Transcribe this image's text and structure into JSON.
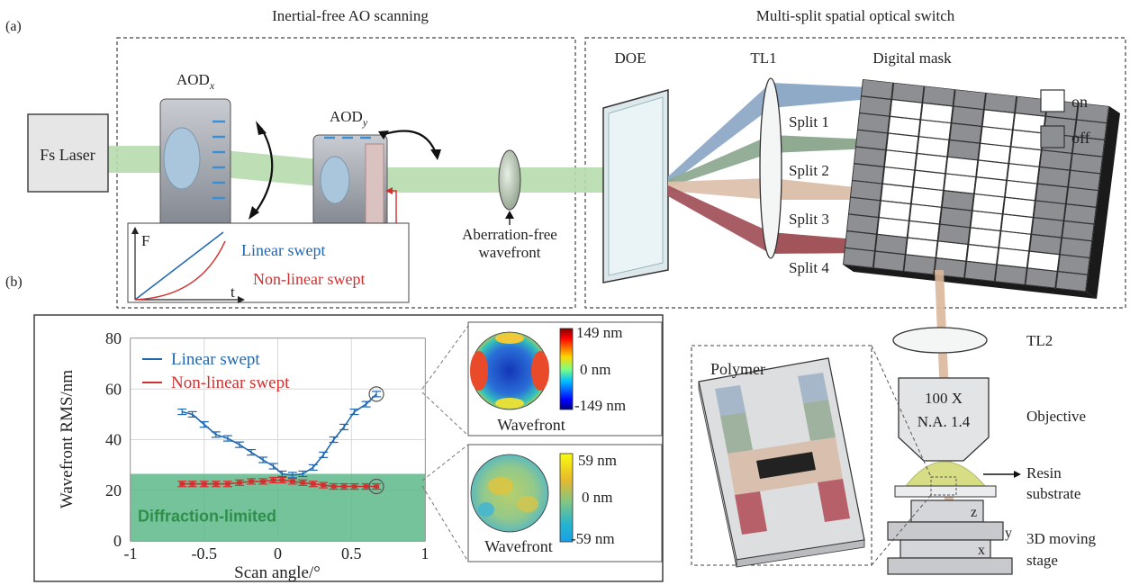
{
  "panel_labels": {
    "a": "(a)",
    "b": "(b)"
  },
  "section_titles": {
    "scanning": "Inertial-free AO scanning",
    "switch": "Multi-split spatial optical switch"
  },
  "components": {
    "laser": "Fs Laser",
    "aod_x": "AOD",
    "aod_x_sub": "x",
    "aod_y": "AOD",
    "aod_y_sub": "y",
    "aberration": "Aberration-free",
    "wavefront": "wavefront",
    "doe": "DOE",
    "tl1": "TL1",
    "mask": "Digital mask",
    "tl2": "TL2",
    "objective_label": "Objective",
    "objective_mag": "100 X",
    "objective_na": "N.A. 1.4",
    "resin": "Resin",
    "substrate": "substrate",
    "stage_line1": "3D moving",
    "stage_line2": "stage",
    "axis_z": "z",
    "axis_y": "y",
    "axis_x": "x",
    "polymer": "Polymer"
  },
  "splits": [
    "Split 1",
    "Split 2",
    "Split 3",
    "Split 4"
  ],
  "mask_legend": {
    "on": "on",
    "off": "off"
  },
  "sweep_inset": {
    "y_label": "F",
    "x_label": "t",
    "linear": "Linear swept",
    "nonlinear": "Non-linear swept"
  },
  "wavefront_maps": [
    {
      "caption": "Wavefront",
      "max": "149 nm",
      "mid": "0 nm",
      "min": "-149 nm"
    },
    {
      "caption": "Wavefront",
      "max": "59 nm",
      "mid": "0 nm",
      "min": "-59 nm"
    }
  ],
  "colors": {
    "beam": "#b7dcae",
    "linear": "#1f67b1",
    "nonlinear": "#d32f2f",
    "diffraction_zone": "#5cb98a",
    "split1": "#8eaac6",
    "split2": "#8faa91",
    "split3": "#dcc1ad",
    "split4": "#a2545b"
  },
  "chart_data": {
    "type": "line",
    "xlabel": "Scan angle/°",
    "ylabel": "Wavefront RMS/nm",
    "xlim": [
      -1,
      1
    ],
    "ylim": [
      0,
      80
    ],
    "x_ticks": [
      "-1",
      "-0.5",
      "0",
      "0.5",
      "1"
    ],
    "y_ticks": [
      "0",
      "20",
      "40",
      "60",
      "80"
    ],
    "legend": "top-left",
    "grid": true,
    "region": {
      "label": "Diffraction-limited",
      "y_max": 26.5
    },
    "series": [
      {
        "name": "Linear swept",
        "x": [
          -0.65,
          -0.58,
          -0.5,
          -0.42,
          -0.34,
          -0.26,
          -0.18,
          -0.1,
          -0.03,
          0.03,
          0.1,
          0.17,
          0.24,
          0.31,
          0.38,
          0.45,
          0.52,
          0.6,
          0.67
        ],
        "values": [
          51,
          50,
          46,
          42,
          40.5,
          38,
          35,
          32,
          29.5,
          26.5,
          26,
          26.5,
          29,
          34,
          40,
          45,
          51,
          54,
          58
        ]
      },
      {
        "name": "Non-linear swept",
        "x": [
          -0.65,
          -0.58,
          -0.5,
          -0.42,
          -0.34,
          -0.26,
          -0.18,
          -0.1,
          -0.03,
          0.03,
          0.1,
          0.17,
          0.24,
          0.31,
          0.38,
          0.45,
          0.52,
          0.6,
          0.67
        ],
        "values": [
          22.5,
          22.5,
          22.5,
          22.5,
          22.5,
          23,
          23.5,
          23.5,
          24,
          24,
          23.5,
          23,
          22.5,
          22,
          21.5,
          21.5,
          21.5,
          21.5,
          21.5
        ]
      }
    ]
  }
}
